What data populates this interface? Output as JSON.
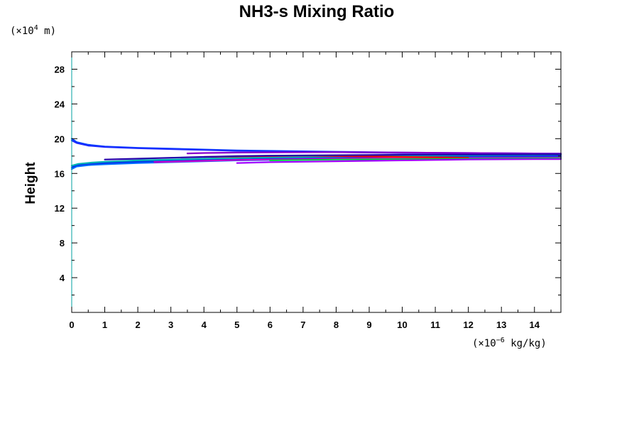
{
  "chart_data": {
    "type": "line",
    "title": "NH3-s Mixing Ratio",
    "ylabel": "Height",
    "y_unit": {
      "prefix": "(×10",
      "exp": "4",
      "suffix": " m)"
    },
    "x_unit": {
      "prefix": "(×10",
      "exp": "−6",
      "suffix": " kg/kg)"
    },
    "xlim": [
      0,
      14.8
    ],
    "ylim": [
      0,
      30
    ],
    "x_ticks": [
      "0",
      "1",
      "2",
      "3",
      "4",
      "5",
      "6",
      "7",
      "8",
      "9",
      "10",
      "11",
      "12",
      "13",
      "14"
    ],
    "y_ticks": [
      "4",
      "8",
      "12",
      "16",
      "20",
      "24",
      "28"
    ],
    "grid": false,
    "legend": "none",
    "series": [
      {
        "color": "#0044ff",
        "x": [
          0,
          0.15,
          0.5,
          1,
          2,
          3,
          4,
          5,
          6,
          8,
          10,
          12,
          14,
          14.8
        ],
        "y": [
          20.0,
          19.6,
          19.3,
          19.1,
          18.95,
          18.85,
          18.75,
          18.65,
          18.6,
          18.5,
          18.4,
          18.35,
          18.3,
          18.28
        ]
      },
      {
        "color": "#1a2bff",
        "x": [
          0,
          0.15,
          0.5,
          1,
          2,
          3,
          4,
          5,
          6,
          8,
          10,
          12,
          14,
          14.8
        ],
        "y": [
          19.8,
          19.5,
          19.2,
          19.05,
          18.9,
          18.8,
          18.7,
          18.6,
          18.55,
          18.45,
          18.35,
          18.3,
          18.25,
          18.22
        ]
      },
      {
        "color": "#0070ff",
        "x": [
          0,
          0.15,
          0.5,
          1,
          2,
          3,
          4,
          5,
          6,
          8,
          10,
          12,
          14,
          14.8
        ],
        "y": [
          16.5,
          16.8,
          16.95,
          17.05,
          17.2,
          17.3,
          17.4,
          17.5,
          17.55,
          17.65,
          17.75,
          17.8,
          17.85,
          17.88
        ]
      },
      {
        "color": "#0033ee",
        "x": [
          0,
          0.15,
          0.5,
          1,
          2,
          3,
          4,
          5,
          6,
          8,
          10,
          12,
          14,
          14.8
        ],
        "y": [
          16.7,
          16.95,
          17.1,
          17.2,
          17.35,
          17.45,
          17.55,
          17.6,
          17.7,
          17.8,
          17.9,
          17.95,
          18.0,
          18.02
        ]
      },
      {
        "color": "#00b3b3",
        "x": [
          0,
          0.2,
          0.6,
          1,
          2,
          3,
          4,
          5,
          6,
          8,
          10,
          12,
          14,
          14.8
        ],
        "y": [
          16.9,
          17.1,
          17.25,
          17.35,
          17.5,
          17.6,
          17.7,
          17.78,
          17.85,
          17.95,
          18.05,
          18.1,
          18.15,
          18.17
        ]
      },
      {
        "color": "#cc00cc",
        "x": [
          2.5,
          3,
          4,
          5,
          6,
          8,
          10,
          12,
          14,
          14.8
        ],
        "y": [
          17.3,
          17.35,
          17.45,
          17.55,
          17.6,
          17.7,
          17.75,
          17.8,
          17.82,
          17.84
        ]
      },
      {
        "color": "#8800cc",
        "x": [
          3.5,
          4,
          5,
          6,
          8,
          10,
          12,
          14,
          14.8
        ],
        "y": [
          18.3,
          18.35,
          18.4,
          18.42,
          18.45,
          18.4,
          18.35,
          18.3,
          18.28
        ]
      },
      {
        "color": "#ff0000",
        "x": [
          4,
          5,
          6,
          7,
          8,
          9,
          10,
          11,
          12
        ],
        "y": [
          17.9,
          17.95,
          18.0,
          18.05,
          18.0,
          17.95,
          17.9,
          17.85,
          17.8
        ]
      },
      {
        "color": "#00cc44",
        "x": [
          6,
          7,
          8,
          9,
          10,
          11,
          12,
          13,
          14,
          14.8
        ],
        "y": [
          17.5,
          17.55,
          17.6,
          17.62,
          17.65,
          17.67,
          17.7,
          17.72,
          17.74,
          17.75
        ]
      },
      {
        "color": "#2200aa",
        "x": [
          1,
          2,
          3,
          4,
          5,
          6,
          8,
          10,
          12,
          14,
          14.8
        ],
        "y": [
          17.6,
          17.7,
          17.8,
          17.9,
          18.0,
          18.05,
          18.1,
          18.15,
          18.18,
          18.2,
          18.2
        ]
      },
      {
        "color": "#a000ff",
        "x": [
          5,
          6,
          7,
          8,
          9,
          10,
          11,
          12,
          13,
          14,
          14.8
        ],
        "y": [
          17.2,
          17.3,
          17.35,
          17.4,
          17.45,
          17.5,
          17.55,
          17.6,
          17.62,
          17.64,
          17.65
        ]
      }
    ]
  }
}
